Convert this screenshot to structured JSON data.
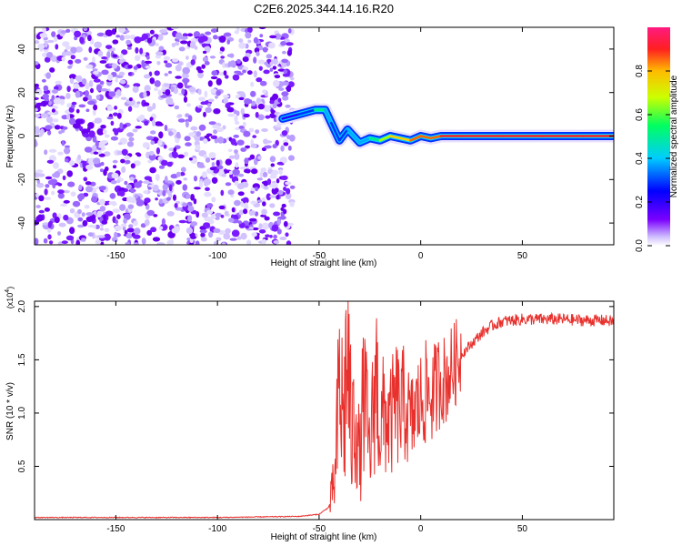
{
  "title": "C2E6.2025.344.14.16.R20",
  "colors": {
    "snr_line": "#e8312d",
    "scatter_purple": "#6a00f0",
    "background": "#ffffff"
  },
  "chart_data": [
    {
      "type": "heatmap",
      "xlabel": "Height of straight line (km)",
      "ylabel": "Frequency (Hz)",
      "xlim": [
        -190,
        95
      ],
      "ylim": [
        -50,
        50
      ],
      "xticks": [
        -150,
        -100,
        -50,
        0,
        50
      ],
      "yticks": [
        -40,
        -20,
        0,
        20,
        40
      ],
      "grid": false,
      "colorbar": {
        "label": "Normalized spectral amplitude",
        "range": [
          0,
          1
        ],
        "ticks": [
          "0.0",
          "0.2",
          "0.4",
          "0.6",
          "0.8"
        ],
        "tick_values": [
          0,
          0.2,
          0.4,
          0.6,
          0.8
        ],
        "colors": [
          "#ffffff",
          "#cfc0ff",
          "#7a00ff",
          "#0000ff",
          "#00ccff",
          "#00ff60",
          "#ccff00",
          "#ffbb00",
          "#ff2020",
          "#ff1a80"
        ]
      },
      "ridge": {
        "x": [
          -68,
          -60,
          -52,
          -47,
          -44,
          -40,
          -36,
          -30,
          -25,
          -20,
          -15,
          -10,
          -5,
          0,
          5,
          10,
          20,
          40,
          60,
          80,
          95
        ],
        "y": [
          8,
          10,
          12,
          12,
          6,
          -2,
          3,
          -3,
          -1,
          -2,
          0,
          -1,
          -2,
          0,
          -1,
          0,
          0,
          0,
          0,
          0,
          0
        ],
        "amplitude": [
          0.25,
          0.35,
          0.55,
          0.45,
          0.3,
          0.3,
          0.4,
          0.45,
          0.55,
          0.6,
          0.7,
          0.75,
          0.8,
          0.85,
          0.85,
          0.9,
          0.9,
          0.92,
          0.92,
          0.92,
          0.92
        ]
      }
    },
    {
      "type": "line",
      "xlabel": "Height of straight line (km)",
      "ylabel": "SNR (10 * v/v)",
      "multiplier": "(x10",
      "multiplier_exp": "4",
      "multiplier_close": ")",
      "xlim": [
        -190,
        95
      ],
      "ylim": [
        0,
        2.05
      ],
      "xticks": [
        -150,
        -100,
        -50,
        0,
        50
      ],
      "yticks": [
        "0.5",
        "1.0",
        "1.5",
        "2.0"
      ],
      "ytick_values": [
        0.5,
        1.0,
        1.5,
        2.0
      ],
      "grid": false,
      "series": [
        {
          "x": [
            -190,
            -150,
            -100,
            -60,
            -50,
            -45,
            -42,
            -40,
            -38,
            -36,
            -34,
            -32,
            -30,
            -28,
            -25,
            -22,
            -20,
            -18,
            -15,
            -12,
            -10,
            -8,
            -5,
            -2,
            0,
            3,
            5,
            8,
            10,
            12,
            15,
            18,
            20,
            25,
            30,
            35,
            40,
            50,
            60,
            70,
            80,
            90,
            95
          ],
          "y": [
            0.02,
            0.02,
            0.02,
            0.03,
            0.05,
            0.12,
            0.4,
            1.3,
            0.9,
            1.6,
            0.7,
            1.1,
            0.5,
            1.2,
            0.6,
            1.4,
            0.8,
            1.0,
            0.9,
            1.1,
            1.0,
            1.1,
            0.9,
            1.05,
            1.1,
            1.2,
            1.15,
            1.25,
            1.35,
            1.3,
            1.4,
            1.5,
            1.55,
            1.65,
            1.75,
            1.82,
            1.86,
            1.88,
            1.88,
            1.88,
            1.87,
            1.87,
            1.86
          ]
        }
      ]
    }
  ]
}
